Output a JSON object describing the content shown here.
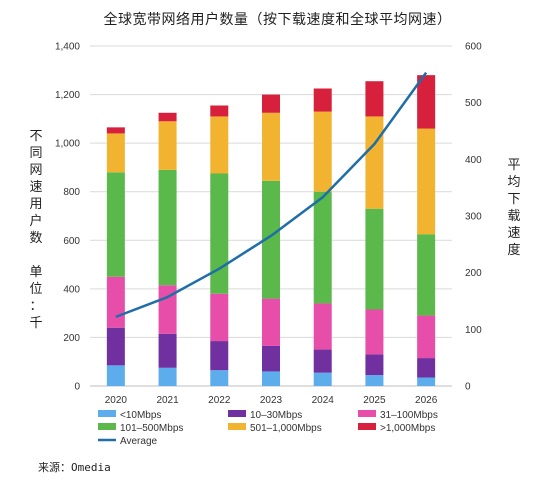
{
  "chart_data": {
    "type": "bar",
    "stacked": true,
    "title": "全球宽带网络用户数量（按下载速度和全球平均网速）",
    "ylabel_left": "不同网速用户数  单位：千",
    "ylabel_left_lines": [
      "不",
      "同",
      "网",
      "速",
      "用",
      "户",
      "数",
      "",
      "单",
      "位",
      "：",
      "千"
    ],
    "ylabel_right": "平均下载速度",
    "ylabel_right_lines": [
      "平",
      "均",
      "下",
      "载",
      "速",
      "度"
    ],
    "categories": [
      "2020",
      "2021",
      "2022",
      "2023",
      "2024",
      "2025",
      "2026"
    ],
    "ylim_left": [
      0,
      1400
    ],
    "yticks_left": [
      "0",
      "200",
      "400",
      "600",
      "800",
      "1,000",
      "1,200",
      "1,400"
    ],
    "ylim_right": [
      0,
      600
    ],
    "yticks_right": [
      "0",
      "100",
      "200",
      "300",
      "400",
      "500",
      "600"
    ],
    "grid": true,
    "legend_position": "bottom",
    "series": [
      {
        "name": "<10Mbps",
        "color": "#5DADEC",
        "values": [
          85,
          75,
          65,
          60,
          55,
          45,
          35
        ]
      },
      {
        "name": "10–30Mbps",
        "color": "#7030A0",
        "values": [
          155,
          140,
          120,
          105,
          95,
          85,
          80
        ]
      },
      {
        "name": "31–100Mbps",
        "color": "#E64EA9",
        "values": [
          210,
          200,
          195,
          195,
          190,
          185,
          175
        ]
      },
      {
        "name": "101–500Mbps",
        "color": "#5BB84A",
        "values": [
          430,
          475,
          495,
          485,
          460,
          415,
          335
        ]
      },
      {
        "name": "501–1,000Mbps",
        "color": "#F2B430",
        "values": [
          160,
          200,
          235,
          280,
          330,
          380,
          435
        ]
      },
      {
        "name": ">1,000Mbps",
        "color": "#D6203C",
        "values": [
          25,
          35,
          45,
          75,
          95,
          145,
          220
        ]
      }
    ],
    "line": {
      "name": "Average",
      "color": "#1F6EA8",
      "axis": "right",
      "values": [
        122,
        157,
        207,
        265,
        333,
        427,
        553
      ]
    }
  },
  "source": "来源：Omedia"
}
